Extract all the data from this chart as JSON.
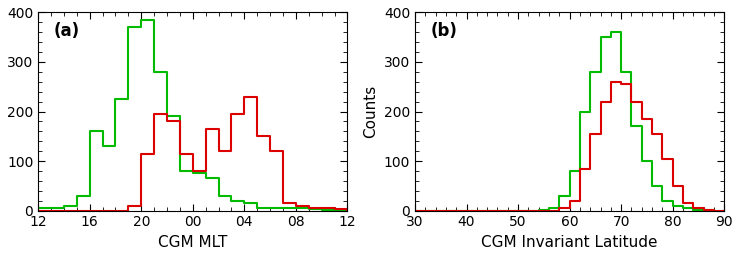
{
  "panel_a": {
    "xlabel": "CGM MLT",
    "xtick_vals": [
      12,
      16,
      20,
      24,
      28,
      32,
      36
    ],
    "xtick_labels": [
      "12",
      "16",
      "20",
      "00",
      "04",
      "08",
      "12"
    ],
    "xlim": [
      12,
      36
    ],
    "ylim": [
      0,
      400
    ],
    "yticks": [
      0,
      100,
      200,
      300,
      400
    ],
    "label": "(a)",
    "green_edges": [
      12,
      13,
      14,
      15,
      16,
      17,
      18,
      19,
      20,
      21,
      22,
      23,
      24,
      25,
      26,
      27,
      28,
      29,
      30,
      31,
      32,
      33,
      34,
      35,
      36
    ],
    "green_counts": [
      5,
      5,
      10,
      30,
      160,
      130,
      225,
      370,
      385,
      280,
      190,
      80,
      75,
      65,
      30,
      20,
      15,
      5,
      5,
      5,
      5,
      3,
      2,
      2
    ],
    "red_edges": [
      12,
      13,
      14,
      15,
      16,
      17,
      18,
      19,
      20,
      21,
      22,
      23,
      24,
      25,
      26,
      27,
      28,
      29,
      30,
      31,
      32,
      33,
      34,
      35,
      36
    ],
    "red_counts": [
      0,
      0,
      0,
      0,
      0,
      0,
      0,
      10,
      115,
      195,
      180,
      115,
      80,
      165,
      120,
      195,
      230,
      150,
      120,
      15,
      10,
      5,
      5,
      3
    ]
  },
  "panel_b": {
    "xlabel": "CGM Invariant Latitude",
    "ylabel": "Counts",
    "xticks": [
      30,
      40,
      50,
      60,
      70,
      80,
      90
    ],
    "xlim": [
      30,
      90
    ],
    "ylim": [
      0,
      400
    ],
    "yticks": [
      0,
      100,
      200,
      300,
      400
    ],
    "label": "(b)",
    "green_edges": [
      30,
      32,
      34,
      36,
      38,
      40,
      42,
      44,
      46,
      48,
      50,
      52,
      54,
      56,
      58,
      60,
      62,
      64,
      66,
      68,
      70,
      72,
      74,
      76,
      78,
      80,
      82,
      84,
      86,
      88,
      90
    ],
    "green_counts": [
      0,
      0,
      0,
      0,
      0,
      0,
      0,
      0,
      0,
      0,
      0,
      0,
      2,
      5,
      30,
      80,
      200,
      280,
      350,
      360,
      280,
      170,
      100,
      50,
      20,
      10,
      5,
      2,
      1,
      0
    ],
    "red_edges": [
      30,
      32,
      34,
      36,
      38,
      40,
      42,
      44,
      46,
      48,
      50,
      52,
      54,
      56,
      58,
      60,
      62,
      64,
      66,
      68,
      70,
      72,
      74,
      76,
      78,
      80,
      82,
      84,
      86,
      88,
      90
    ],
    "red_counts": [
      0,
      0,
      0,
      0,
      0,
      0,
      0,
      0,
      0,
      0,
      0,
      0,
      0,
      0,
      5,
      20,
      85,
      155,
      220,
      260,
      255,
      220,
      185,
      155,
      105,
      50,
      15,
      5,
      1,
      0
    ]
  },
  "green_color": "#00bb00",
  "red_color": "#dd0000",
  "bg_color": "#ffffff",
  "label_fontsize": 11,
  "tick_fontsize": 10,
  "linewidth": 1.5
}
